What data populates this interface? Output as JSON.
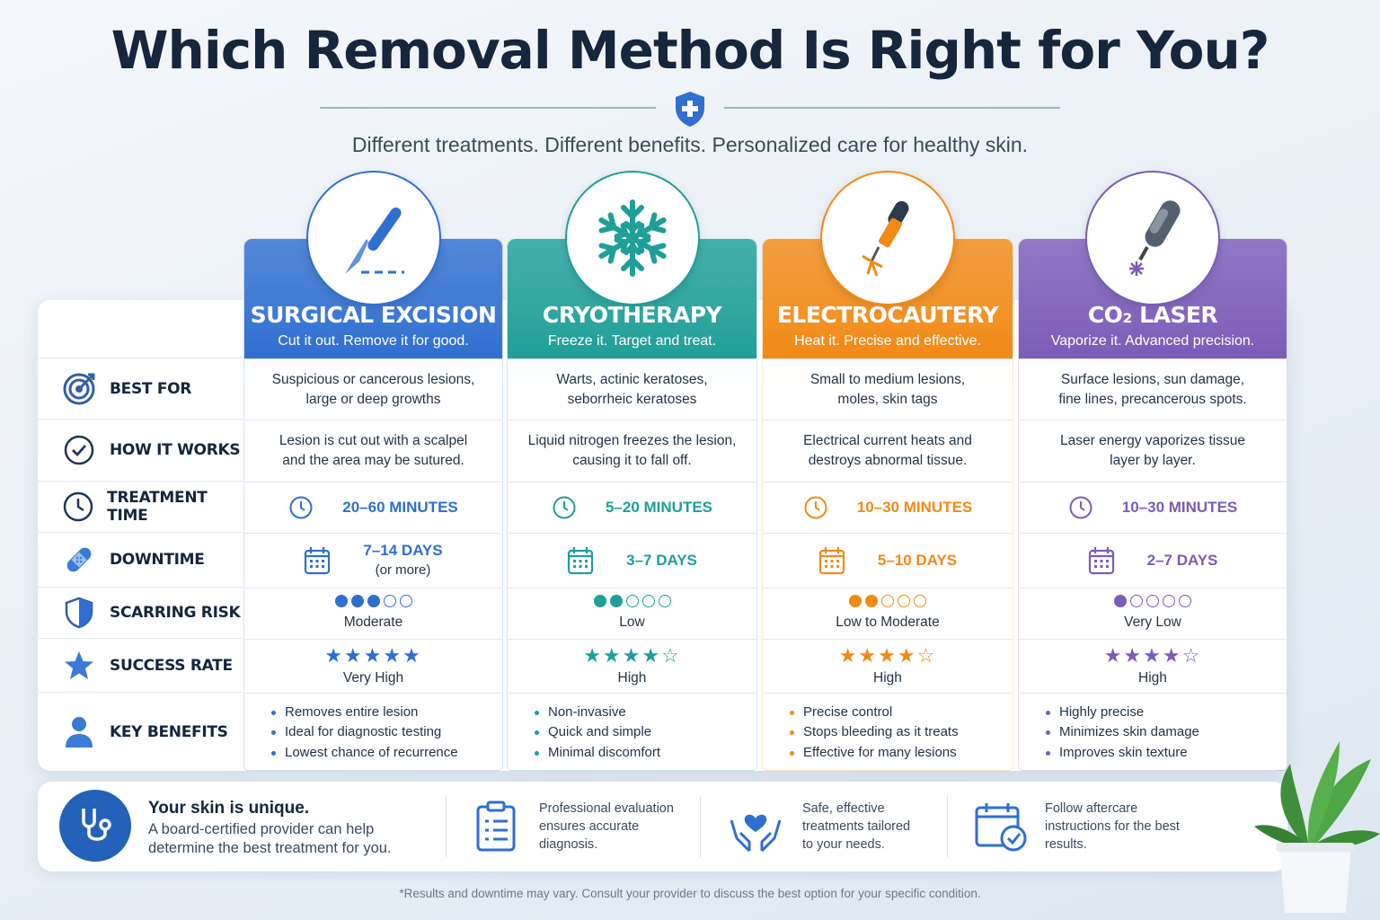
{
  "title": "Which Removal Method Is Right for You?",
  "subtitle": "Different treatments. Different benefits. Personalized care for healthy skin.",
  "row_labels": {
    "best_for": "BEST FOR",
    "how_it_works": "HOW IT WORKS",
    "treatment_time": "TREATMENT TIME",
    "downtime": "DOWNTIME",
    "scarring_risk": "SCARRING RISK",
    "success_rate": "SUCCESS RATE",
    "key_benefits": "KEY BENEFITS"
  },
  "methods": [
    {
      "name": "SURGICAL EXCISION",
      "tagline": "Cut it out. Remove it for good.",
      "color": "#2f6fd0",
      "icon": "scalpel-icon",
      "best_for_1": "Suspicious or cancerous lesions,",
      "best_for_2": "large or deep growths",
      "how_1": "Lesion is cut out with a scalpel",
      "how_2": "and the area may be sutured.",
      "time": "20–60 MINUTES",
      "downtime": "7–14 DAYS",
      "downtime_note": "(or more)",
      "scarring_level": 3,
      "scarring_max": 5,
      "scarring": "Moderate",
      "stars": "★★★★★",
      "success_stars": 5,
      "success": "Very High",
      "benefits": [
        "Removes entire lesion",
        "Ideal for diagnostic testing",
        "Lowest chance of recurrence"
      ]
    },
    {
      "name": "CRYOTHERAPY",
      "tagline": "Freeze it. Target and treat.",
      "color": "#1f9f98",
      "icon": "snowflake-icon",
      "best_for_1": "Warts, actinic keratoses,",
      "best_for_2": "seborrheic keratoses",
      "how_1": "Liquid nitrogen freezes the lesion,",
      "how_2": "causing it to fall off.",
      "time": "5–20 MINUTES",
      "downtime": "3–7 DAYS",
      "downtime_note": "",
      "scarring_level": 2,
      "scarring_max": 5,
      "scarring": "Low",
      "stars": "★★★★☆",
      "success_stars": 4,
      "success": "High",
      "benefits": [
        "Non-invasive",
        "Quick and simple",
        "Minimal discomfort"
      ]
    },
    {
      "name": "ELECTROCAUTERY",
      "tagline": "Heat it. Precise and effective.",
      "color": "#f28a16",
      "icon": "cautery-pen-icon",
      "best_for_1": "Small to medium lesions,",
      "best_for_2": "moles, skin tags",
      "how_1": "Electrical current heats and",
      "how_2": "destroys abnormal tissue.",
      "time": "10–30 MINUTES",
      "downtime": "5–10 DAYS",
      "downtime_note": "",
      "scarring_level": 2,
      "scarring_max": 5,
      "scarring": "Low to Moderate",
      "stars": "★★★★☆",
      "success_stars": 4,
      "success": "High",
      "benefits": [
        "Precise control",
        "Stops bleeding as it treats",
        "Effective for many lesions"
      ]
    },
    {
      "name": "CO₂ LASER",
      "tagline": "Vaporize it. Advanced precision.",
      "color": "#7b5cb8",
      "icon": "laser-device-icon",
      "best_for_1": "Surface lesions, sun damage,",
      "best_for_2": "fine lines, precancerous spots.",
      "how_1": "Laser energy vaporizes tissue",
      "how_2": "layer by layer.",
      "time": "10–30 MINUTES",
      "downtime": "2–7 DAYS",
      "downtime_note": "",
      "scarring_level": 1,
      "scarring_max": 5,
      "scarring": "Very Low",
      "stars": "★★★★☆",
      "success_stars": 4,
      "success": "High",
      "benefits": [
        "Highly precise",
        "Minimizes skin damage",
        "Improves skin texture"
      ]
    }
  ],
  "footer": {
    "heading": "Your skin is unique.",
    "text_1": "A board-certified provider can help",
    "text_2": "determine the best treatment for you.",
    "items": [
      {
        "icon": "clipboard-icon",
        "l1": "Professional evaluation",
        "l2": "ensures accurate",
        "l3": "diagnosis."
      },
      {
        "icon": "caring-hands-icon",
        "l1": "Safe, effective",
        "l2": "treatments tailored",
        "l3": "to your needs."
      },
      {
        "icon": "calendar-check-icon",
        "l1": "Follow aftercare",
        "l2": "instructions for the best",
        "l3": "results."
      }
    ]
  },
  "disclaimer": "*Results and downtime may vary. Consult your provider to discuss the best option for your specific condition."
}
